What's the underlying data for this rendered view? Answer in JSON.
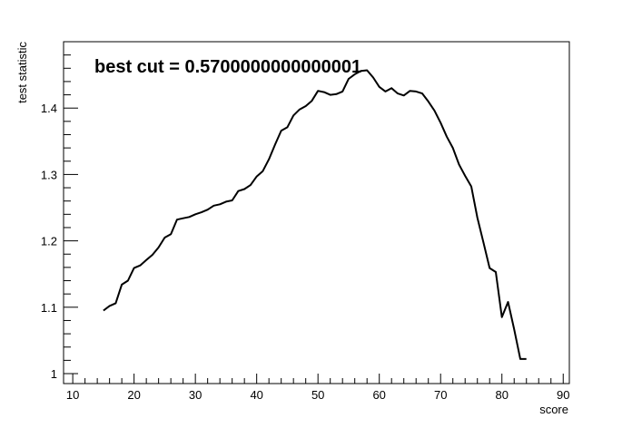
{
  "chart_data": {
    "type": "line",
    "title": "best cut = 0.5700000000000001",
    "xlabel": "score",
    "ylabel": "test statistic",
    "xlim": [
      8.5,
      91
    ],
    "ylim": [
      0.985,
      1.5
    ],
    "x_major_ticks": [
      10,
      20,
      30,
      40,
      50,
      60,
      70,
      80,
      90
    ],
    "y_major_ticks": [
      1,
      1.1,
      1.2,
      1.3,
      1.4
    ],
    "x_tick_labels": [
      "10",
      "20",
      "30",
      "40",
      "50",
      "60",
      "70",
      "80",
      "90"
    ],
    "y_tick_labels": [
      "1",
      "1.1",
      "1.2",
      "1.3",
      "1.4"
    ],
    "grid": false,
    "legend": "none",
    "line_color": "#000000",
    "series": [
      {
        "x": [
          15,
          16,
          17,
          18,
          19,
          20,
          21,
          22,
          23,
          24,
          25,
          26,
          27,
          28,
          29,
          30,
          31,
          32,
          33,
          34,
          35,
          36,
          37,
          38,
          39,
          40,
          41,
          42,
          43,
          44,
          45,
          46,
          47,
          48,
          49,
          50,
          51,
          52,
          53,
          54,
          55,
          56,
          57,
          58,
          59,
          60,
          61,
          62,
          63,
          64,
          65,
          66,
          67,
          68,
          69,
          70,
          71,
          72,
          73,
          74,
          75,
          76,
          77,
          78,
          79,
          80,
          81,
          82,
          83,
          84
        ],
        "y": [
          1.095,
          1.102,
          1.106,
          1.134,
          1.14,
          1.159,
          1.163,
          1.171,
          1.179,
          1.19,
          1.205,
          1.21,
          1.232,
          1.234,
          1.236,
          1.24,
          1.243,
          1.247,
          1.253,
          1.255,
          1.259,
          1.261,
          1.275,
          1.278,
          1.284,
          1.297,
          1.305,
          1.323,
          1.345,
          1.366,
          1.371,
          1.389,
          1.398,
          1.403,
          1.411,
          1.426,
          1.424,
          1.42,
          1.421,
          1.425,
          1.444,
          1.451,
          1.456,
          1.457,
          1.446,
          1.432,
          1.425,
          1.43,
          1.422,
          1.419,
          1.426,
          1.425,
          1.422,
          1.41,
          1.396,
          1.378,
          1.357,
          1.34,
          1.315,
          1.298,
          1.282,
          1.235,
          1.197,
          1.159,
          1.153,
          1.085,
          1.108,
          1.067,
          1.022,
          1.022
        ]
      }
    ]
  }
}
